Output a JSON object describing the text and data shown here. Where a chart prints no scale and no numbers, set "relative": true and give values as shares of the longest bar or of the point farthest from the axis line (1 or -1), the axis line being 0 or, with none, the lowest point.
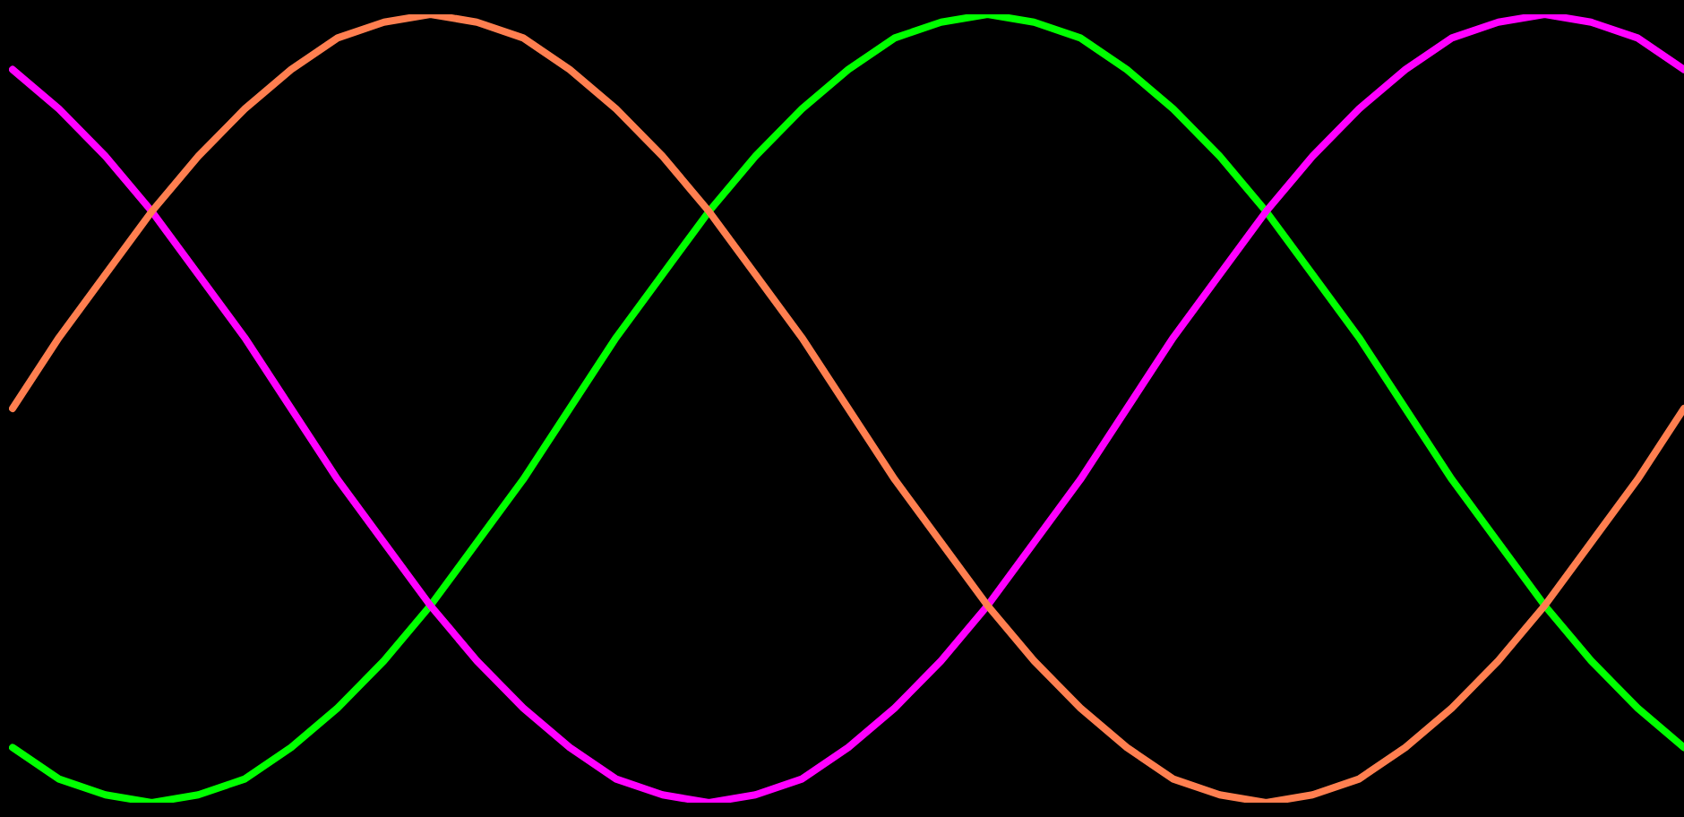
{
  "chart_data": {
    "type": "line",
    "relative": true,
    "legend": false,
    "marker": "none",
    "line_style": "solid",
    "categories": [
      null,
      null,
      null,
      null,
      null,
      null,
      null,
      null,
      null,
      null,
      null,
      null,
      null,
      null,
      null,
      null,
      null,
      null,
      null,
      null,
      null,
      null,
      null,
      null,
      null,
      null,
      null,
      null,
      null,
      null,
      null,
      null,
      null,
      null,
      null,
      null,
      null
    ],
    "series": [
      {
        "color": "#ff7f50",
        "values": [
          0.5,
          0.59,
          0.67,
          0.75,
          0.82,
          0.88,
          0.93,
          0.97,
          0.99,
          1.0,
          0.99,
          0.97,
          0.93,
          0.88,
          0.82,
          0.75,
          0.67,
          0.59,
          0.5,
          0.41,
          0.33,
          0.25,
          0.18,
          0.12,
          0.07,
          0.03,
          0.01,
          0.0,
          0.01,
          0.03,
          0.07,
          0.12,
          0.18,
          0.25,
          0.33,
          0.41,
          0.5
        ]
      },
      {
        "color": "#ff00ff",
        "values": [
          0.93,
          0.88,
          0.82,
          0.75,
          0.67,
          0.59,
          0.5,
          0.41,
          0.33,
          0.25,
          0.18,
          0.12,
          0.07,
          0.03,
          0.01,
          0.0,
          0.01,
          0.03,
          0.07,
          0.12,
          0.18,
          0.25,
          0.33,
          0.41,
          0.5,
          0.59,
          0.67,
          0.75,
          0.82,
          0.88,
          0.93,
          0.97,
          0.99,
          1.0,
          0.99,
          0.97,
          0.93
        ]
      },
      {
        "color": "#00ff00",
        "values": [
          0.07,
          0.03,
          0.01,
          0.0,
          0.01,
          0.03,
          0.07,
          0.12,
          0.18,
          0.25,
          0.33,
          0.41,
          0.5,
          0.59,
          0.67,
          0.75,
          0.82,
          0.88,
          0.93,
          0.97,
          0.99,
          1.0,
          0.99,
          0.97,
          0.93,
          0.88,
          0.82,
          0.75,
          0.67,
          0.59,
          0.5,
          0.41,
          0.33,
          0.25,
          0.18,
          0.12,
          0.07
        ]
      }
    ]
  }
}
